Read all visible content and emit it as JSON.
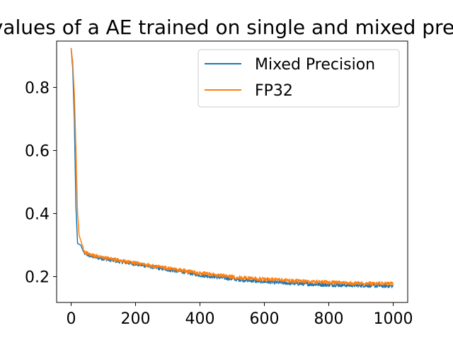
{
  "chart_data": {
    "type": "line",
    "title": "Loss values of a AE trained on single and mixed precision",
    "xlabel": "",
    "ylabel": "",
    "xlim": [
      -45,
      1045
    ],
    "ylim": [
      0.118,
      0.947
    ],
    "xticks": [
      0,
      200,
      400,
      600,
      800,
      1000
    ],
    "yticks": [
      0.2,
      0.4,
      0.6,
      0.8
    ],
    "xtick_labels": [
      "0",
      "200",
      "400",
      "600",
      "800",
      "1000"
    ],
    "ytick_labels": [
      "0.2",
      "0.4",
      "0.6",
      "0.8"
    ],
    "grid": false,
    "legend": {
      "position": "top-right",
      "entries": [
        "Mixed Precision",
        "FP32"
      ]
    },
    "series": [
      {
        "name": "Mixed Precision",
        "color": "#1f77b4",
        "noise": 0.006,
        "points": [
          [
            0,
            0.925
          ],
          [
            5,
            0.86
          ],
          [
            10,
            0.7
          ],
          [
            15,
            0.42
          ],
          [
            20,
            0.305
          ],
          [
            30,
            0.3
          ],
          [
            40,
            0.275
          ],
          [
            60,
            0.265
          ],
          [
            100,
            0.257
          ],
          [
            150,
            0.248
          ],
          [
            200,
            0.24
          ],
          [
            250,
            0.231
          ],
          [
            300,
            0.222
          ],
          [
            350,
            0.215
          ],
          [
            400,
            0.205
          ],
          [
            450,
            0.199
          ],
          [
            500,
            0.193
          ],
          [
            550,
            0.188
          ],
          [
            600,
            0.184
          ],
          [
            650,
            0.181
          ],
          [
            700,
            0.178
          ],
          [
            750,
            0.176
          ],
          [
            800,
            0.174
          ],
          [
            850,
            0.173
          ],
          [
            900,
            0.172
          ],
          [
            950,
            0.171
          ],
          [
            1000,
            0.17
          ]
        ]
      },
      {
        "name": "FP32",
        "color": "#ff7f0e",
        "noise": 0.006,
        "points": [
          [
            0,
            0.925
          ],
          [
            5,
            0.88
          ],
          [
            10,
            0.78
          ],
          [
            15,
            0.6
          ],
          [
            20,
            0.4
          ],
          [
            25,
            0.33
          ],
          [
            30,
            0.315
          ],
          [
            40,
            0.28
          ],
          [
            60,
            0.268
          ],
          [
            100,
            0.26
          ],
          [
            150,
            0.251
          ],
          [
            200,
            0.243
          ],
          [
            250,
            0.234
          ],
          [
            300,
            0.226
          ],
          [
            350,
            0.219
          ],
          [
            400,
            0.211
          ],
          [
            450,
            0.205
          ],
          [
            500,
            0.199
          ],
          [
            550,
            0.195
          ],
          [
            600,
            0.192
          ],
          [
            650,
            0.189
          ],
          [
            700,
            0.186
          ],
          [
            750,
            0.184
          ],
          [
            800,
            0.182
          ],
          [
            850,
            0.18
          ],
          [
            900,
            0.179
          ],
          [
            950,
            0.178
          ],
          [
            1000,
            0.177
          ]
        ]
      }
    ]
  }
}
